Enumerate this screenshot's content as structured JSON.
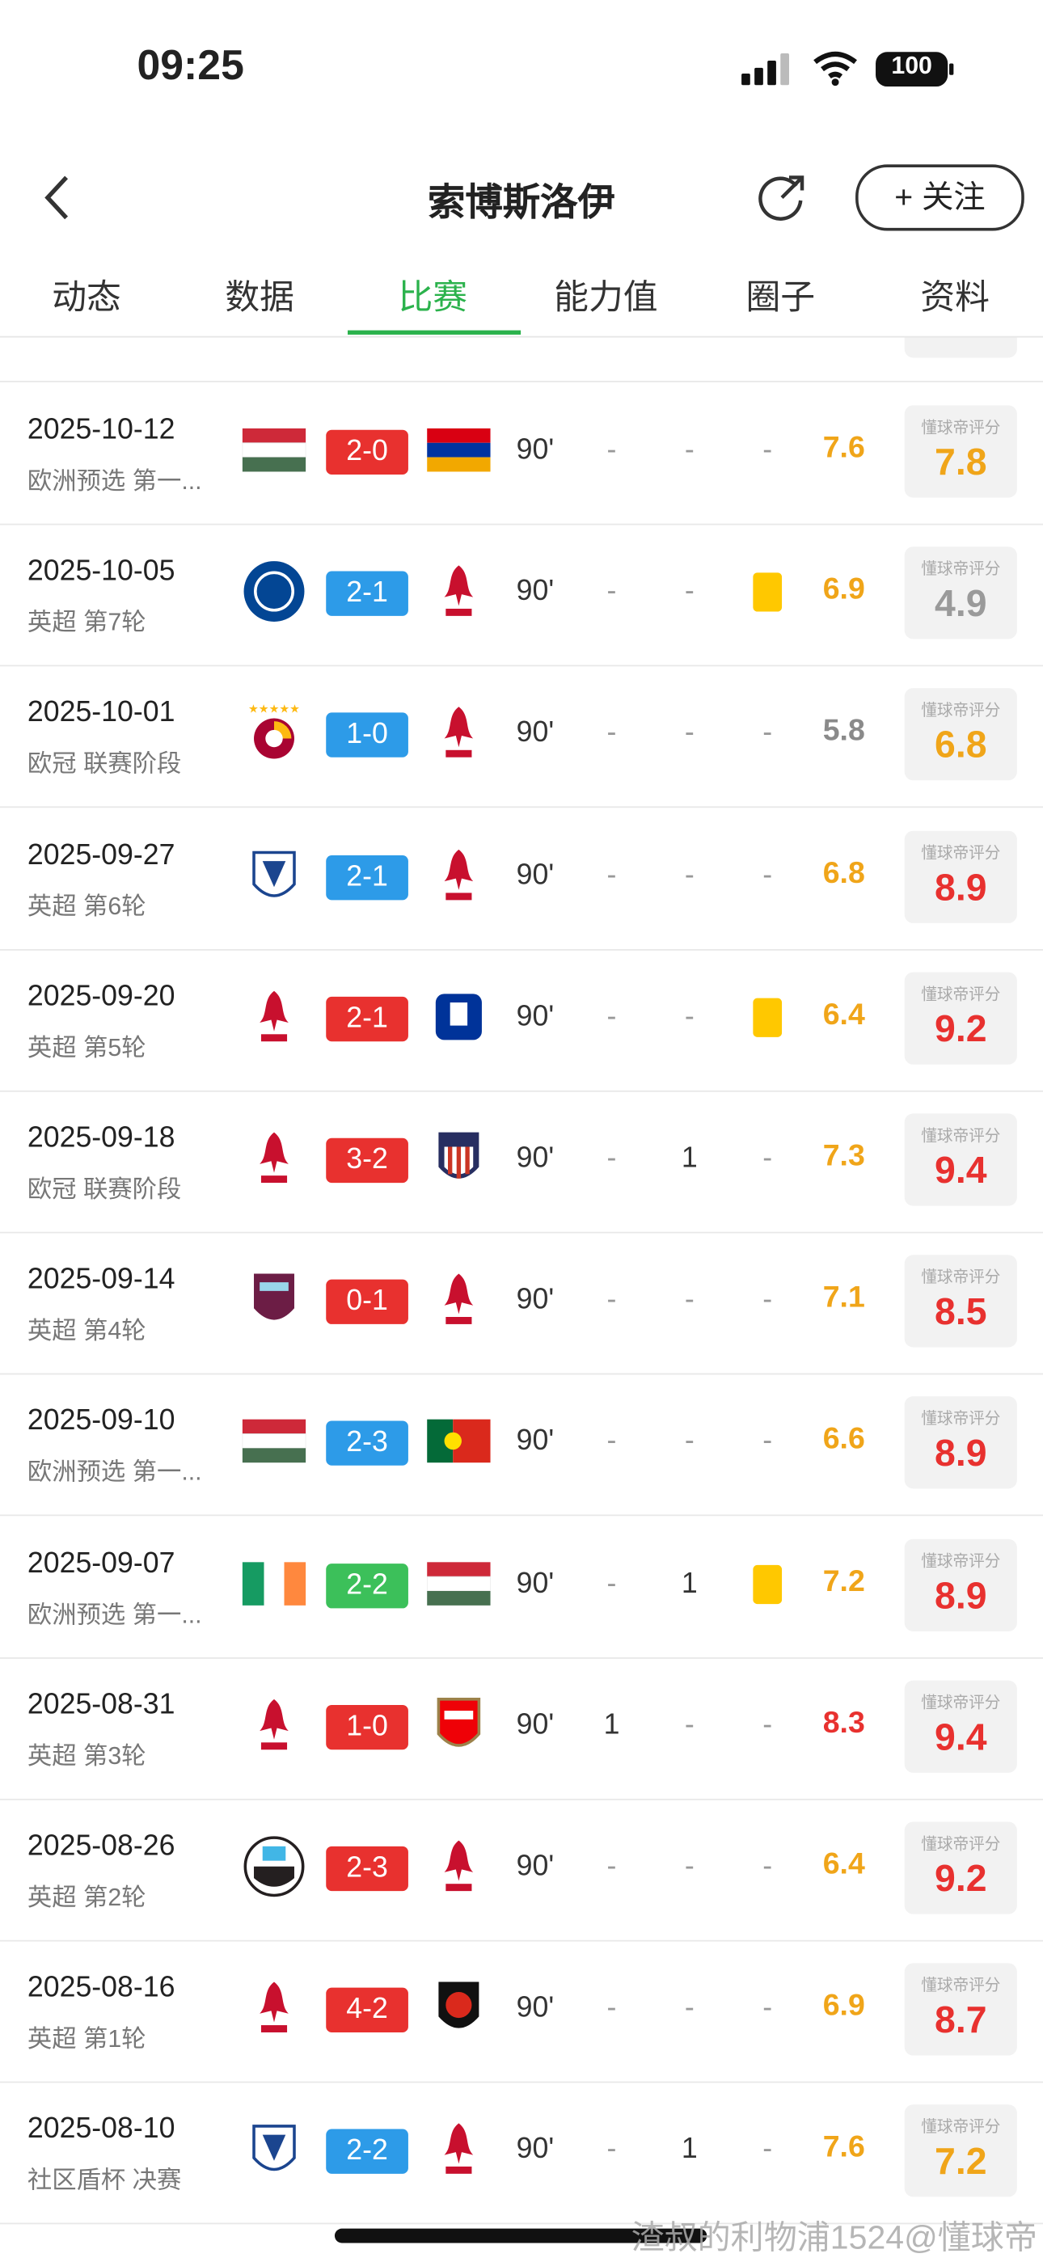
{
  "status_bar": {
    "time": "09:25",
    "battery": "100"
  },
  "header": {
    "title": "索博斯洛伊",
    "follow": "+ 关注"
  },
  "tabs": {
    "items": [
      "动态",
      "数据",
      "比赛",
      "能力值",
      "圈子",
      "资料"
    ],
    "active": 2,
    "active_color": "#2bb24c"
  },
  "matches": {
    "rating_label": "懂球帝评分",
    "rows": [
      {
        "date": "2025-10-12",
        "competition": "欧洲预选 第一...",
        "score": "2-0",
        "score_color": "#e8312f",
        "minutes": "90'",
        "goals": "-",
        "assists": "-",
        "card": "-",
        "rating": 7.6,
        "rating_color": "#f0a519",
        "dq_rating": 7.8,
        "dq_color": "#f0a519"
      },
      {
        "date": "2025-10-05",
        "competition": "英超 第7轮",
        "score": "2-1",
        "score_color": "#2d9be8",
        "minutes": "90'",
        "goals": "-",
        "assists": "-",
        "card": "#ffc800",
        "rating": 6.9,
        "rating_color": "#f0a519",
        "dq_rating": 4.9,
        "dq_color": "#9a9a9a"
      },
      {
        "date": "2025-10-01",
        "competition": "欧冠 联赛阶段",
        "score": "1-0",
        "score_color": "#2d9be8",
        "minutes": "90'",
        "goals": "-",
        "assists": "-",
        "card": "-",
        "rating": 5.8,
        "rating_color": "#8a8a8a",
        "dq_rating": 6.8,
        "dq_color": "#f0a519"
      },
      {
        "date": "2025-09-27",
        "competition": "英超 第6轮",
        "score": "2-1",
        "score_color": "#2d9be8",
        "minutes": "90'",
        "goals": "-",
        "assists": "-",
        "card": "-",
        "rating": 6.8,
        "rating_color": "#f0a519",
        "dq_rating": 8.9,
        "dq_color": "#e8312f"
      },
      {
        "date": "2025-09-20",
        "competition": "英超 第5轮",
        "score": "2-1",
        "score_color": "#e8312f",
        "minutes": "90'",
        "goals": "-",
        "assists": "-",
        "card": "#ffc800",
        "rating": 6.4,
        "rating_color": "#f0a519",
        "dq_rating": 9.2,
        "dq_color": "#e8312f"
      },
      {
        "date": "2025-09-18",
        "competition": "欧冠 联赛阶段",
        "score": "3-2",
        "score_color": "#e8312f",
        "minutes": "90'",
        "goals": "-",
        "assists": 1,
        "card": "-",
        "rating": 7.3,
        "rating_color": "#f0a519",
        "dq_rating": 9.4,
        "dq_color": "#e8312f"
      },
      {
        "date": "2025-09-14",
        "competition": "英超 第4轮",
        "score": "0-1",
        "score_color": "#e8312f",
        "minutes": "90'",
        "goals": "-",
        "assists": "-",
        "card": "-",
        "rating": 7.1,
        "rating_color": "#f0a519",
        "dq_rating": 8.5,
        "dq_color": "#e8312f"
      },
      {
        "date": "2025-09-10",
        "competition": "欧洲预选 第一...",
        "score": "2-3",
        "score_color": "#2d9be8",
        "minutes": "90'",
        "goals": "-",
        "assists": "-",
        "card": "-",
        "rating": 6.6,
        "rating_color": "#f0a519",
        "dq_rating": 8.9,
        "dq_color": "#e8312f"
      },
      {
        "date": "2025-09-07",
        "competition": "欧洲预选 第一...",
        "score": "2-2",
        "score_color": "#3cc05a",
        "minutes": "90'",
        "goals": "-",
        "assists": 1,
        "card": "#ffc800",
        "rating": 7.2,
        "rating_color": "#f0a519",
        "dq_rating": 8.9,
        "dq_color": "#e8312f"
      },
      {
        "date": "2025-08-31",
        "competition": "英超 第3轮",
        "score": "1-0",
        "score_color": "#e8312f",
        "minutes": "90'",
        "goals": 1,
        "assists": "-",
        "card": "-",
        "rating": 8.3,
        "rating_color": "#e8312f",
        "dq_rating": 9.4,
        "dq_color": "#e8312f"
      },
      {
        "date": "2025-08-26",
        "competition": "英超 第2轮",
        "score": "2-3",
        "score_color": "#e8312f",
        "minutes": "90'",
        "goals": "-",
        "assists": "-",
        "card": "-",
        "rating": 6.4,
        "rating_color": "#f0a519",
        "dq_rating": 9.2,
        "dq_color": "#e8312f"
      },
      {
        "date": "2025-08-16",
        "competition": "英超 第1轮",
        "score": "4-2",
        "score_color": "#e8312f",
        "minutes": "90'",
        "goals": "-",
        "assists": "-",
        "card": "-",
        "rating": 6.9,
        "rating_color": "#f0a519",
        "dq_rating": 8.7,
        "dq_color": "#e8312f"
      },
      {
        "date": "2025-08-10",
        "competition": "社区盾杯 决赛",
        "score": "2-2",
        "score_color": "#2d9be8",
        "minutes": "90'",
        "goals": "-",
        "assists": 1,
        "card": "-",
        "rating": 7.6,
        "rating_color": "#f0a519",
        "dq_rating": 7.2,
        "dq_color": "#f0a519"
      }
    ]
  },
  "watermark": "渣叔的利物浦1524@懂球帝"
}
